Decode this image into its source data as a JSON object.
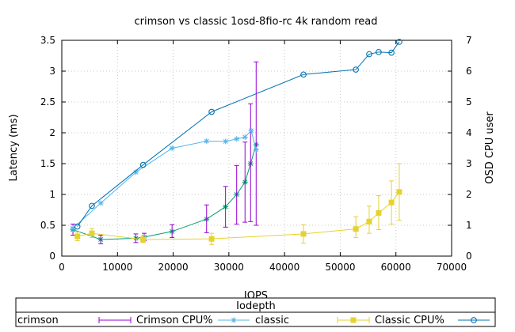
{
  "chart_data": {
    "type": "line",
    "title": "crimson vs classic 1osd-8fio-rc 4k random read",
    "xlabel": "IOPS",
    "ylabel": "Latency (ms)",
    "y2label": "OSD CPU user",
    "xlim": [
      0,
      70000
    ],
    "ylim": [
      0,
      3.5
    ],
    "y2lim": [
      0,
      7
    ],
    "grid": true,
    "x_ticks": [
      "0",
      "10000",
      "20000",
      "30000",
      "40000",
      "50000",
      "60000",
      "70000"
    ],
    "y_ticks": [
      "0",
      "0.5",
      "1",
      "1.5",
      "2",
      "2.5",
      "3",
      "3.5"
    ],
    "y2_ticks": [
      "0",
      "1",
      "2",
      "3",
      "4",
      "5",
      "6",
      "7"
    ],
    "legend": {
      "title": "Iodepth",
      "position": "bottom",
      "entries": [
        "crimson",
        "Crimson CPU%",
        "classic",
        "Classic CPU%"
      ]
    },
    "series": [
      {
        "name": "crimson",
        "axis": "left",
        "color": "#009e73",
        "marker": "star",
        "x": [
          2000,
          7000,
          13300,
          14800,
          19800,
          26000,
          29400,
          31400,
          32900,
          33900,
          34900
        ],
        "y": [
          0.43,
          0.27,
          0.29,
          0.31,
          0.4,
          0.6,
          0.8,
          1.0,
          1.2,
          1.5,
          1.81
        ]
      },
      {
        "name": "Crimson CPU%",
        "axis": "left",
        "color": "#9400d3",
        "type": "errorbar",
        "x": [
          2000,
          7000,
          13300,
          14800,
          19800,
          26000,
          29400,
          31400,
          32900,
          33900,
          34900
        ],
        "y": [
          0.43,
          0.27,
          0.29,
          0.31,
          0.4,
          0.6,
          0.8,
          1.0,
          1.2,
          1.5,
          1.81
        ],
        "low": [
          0.34,
          0.2,
          0.22,
          0.25,
          0.3,
          0.38,
          0.47,
          0.52,
          0.55,
          0.56,
          0.5
        ],
        "high": [
          0.52,
          0.34,
          0.36,
          0.37,
          0.51,
          0.83,
          1.13,
          1.47,
          1.85,
          2.47,
          3.15
        ]
      },
      {
        "name": "classic",
        "axis": "right",
        "color": "#56b4e9",
        "marker": "star",
        "x": [
          2000,
          7000,
          13300,
          19800,
          26000,
          29400,
          31400,
          32900,
          34000,
          34900
        ],
        "y": [
          0.9,
          1.72,
          2.72,
          3.5,
          3.73,
          3.72,
          3.8,
          3.86,
          4.07,
          3.45
        ]
      },
      {
        "name": "Classic CPU%",
        "axis": "left",
        "color": "#e6d22e",
        "marker": "square",
        "type": "errorbar",
        "x": [
          2800,
          5400,
          14600,
          26900,
          43400,
          52800,
          55200,
          56900,
          59200,
          60600
        ],
        "y": [
          0.32,
          0.37,
          0.27,
          0.28,
          0.36,
          0.44,
          0.56,
          0.7,
          0.87,
          1.04
        ],
        "low": [
          0.25,
          0.3,
          0.22,
          0.19,
          0.21,
          0.3,
          0.37,
          0.43,
          0.52,
          0.58
        ],
        "high": [
          0.39,
          0.45,
          0.33,
          0.37,
          0.51,
          0.64,
          0.81,
          0.98,
          1.22,
          1.5
        ]
      },
      {
        "name": "",
        "axis": "right",
        "color": "#0072b2",
        "marker": "circle",
        "x": [
          2800,
          5400,
          14600,
          26900,
          43400,
          52800,
          55200,
          56900,
          59200,
          60600
        ],
        "y": [
          0.96,
          1.63,
          2.96,
          4.68,
          5.89,
          6.05,
          6.55,
          6.62,
          6.6,
          6.95
        ]
      }
    ]
  }
}
